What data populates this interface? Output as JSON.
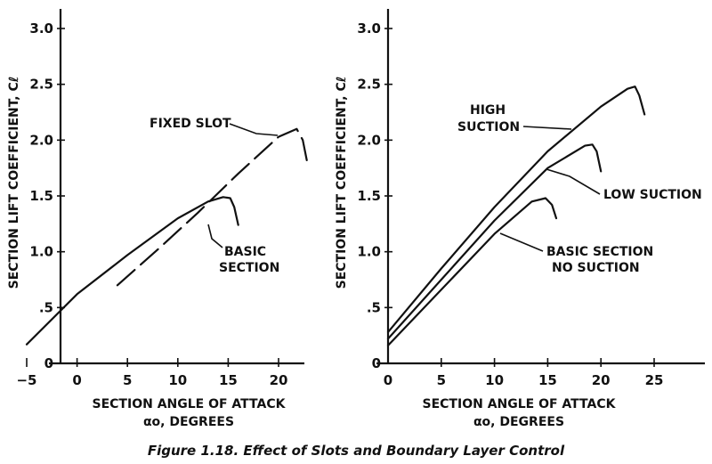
{
  "caption": "Figure 1.18. Effect of Slots and Boundary Layer Control",
  "chart_data": [
    {
      "type": "line",
      "xlabel": [
        "SECTION ANGLE OF ATTACK",
        "αo, DEGREES"
      ],
      "ylabel": "SECTION LIFT COEFFICIENT, Cℓ",
      "xlim": [
        -5,
        25
      ],
      "ylim": [
        0,
        3.0
      ],
      "xticks": [
        -5,
        0,
        5,
        10,
        15,
        20
      ],
      "xtick_labels": [
        "−5",
        "0",
        "5",
        "10",
        "15",
        "20"
      ],
      "yticks": [
        0,
        0.5,
        1.0,
        1.5,
        2.0,
        2.5,
        3.0
      ],
      "ytick_labels": [
        "0",
        ".5",
        "1.0",
        "1.5",
        "2.0",
        "2.5",
        "3.0"
      ],
      "grid": false,
      "series": [
        {
          "name": "BASIC SECTION",
          "style": "solid",
          "x": [
            -5,
            0,
            5,
            10,
            13,
            14.5,
            15.2,
            15.6,
            16.0
          ],
          "y": [
            0.17,
            0.62,
            0.97,
            1.3,
            1.45,
            1.49,
            1.48,
            1.4,
            1.24
          ]
        },
        {
          "name": "FIXED SLOT",
          "style": "dashed",
          "x": [
            4,
            8,
            12,
            16,
            20,
            21.8,
            22.4,
            22.8
          ],
          "y": [
            0.7,
            1.02,
            1.35,
            1.7,
            2.03,
            2.1,
            2.0,
            1.82
          ]
        }
      ],
      "annotations": [
        "FIXED SLOT",
        "BASIC",
        "SECTION"
      ]
    },
    {
      "type": "line",
      "xlabel": [
        "SECTION ANGLE OF ATTACK",
        "αo, DEGREES"
      ],
      "ylabel": "SECTION LIFT COEFFICIENT, Cℓ",
      "xlim": [
        0,
        25
      ],
      "ylim": [
        0,
        3.0
      ],
      "xticks": [
        0,
        5,
        10,
        15,
        20,
        25
      ],
      "xtick_labels": [
        "0",
        "5",
        "10",
        "15",
        "20",
        "25"
      ],
      "yticks": [
        0,
        0.5,
        1.0,
        1.5,
        2.0,
        2.5,
        3.0
      ],
      "ytick_labels": [
        "0",
        ".5",
        "1.0",
        "1.5",
        "2.0",
        "2.5",
        "3.0"
      ],
      "grid": false,
      "series": [
        {
          "name": "HIGH SUCTION",
          "x": [
            0,
            5,
            10,
            15,
            20,
            22.5,
            23.2,
            23.6,
            24.1
          ],
          "y": [
            0.28,
            0.85,
            1.4,
            1.9,
            2.3,
            2.46,
            2.48,
            2.4,
            2.23
          ]
        },
        {
          "name": "LOW SUCTION",
          "x": [
            0,
            5,
            10,
            15,
            18.5,
            19.2,
            19.6,
            20.0
          ],
          "y": [
            0.22,
            0.75,
            1.28,
            1.75,
            1.95,
            1.96,
            1.9,
            1.72
          ]
        },
        {
          "name": "BASIC SECTION NO SUCTION",
          "x": [
            0,
            5,
            10,
            13.5,
            14.8,
            15.4,
            15.8
          ],
          "y": [
            0.16,
            0.66,
            1.16,
            1.45,
            1.48,
            1.42,
            1.3
          ]
        }
      ],
      "annotations": [
        "HIGH",
        "SUCTION",
        "LOW SUCTION",
        "BASIC SECTION",
        "NO SUCTION"
      ]
    }
  ]
}
